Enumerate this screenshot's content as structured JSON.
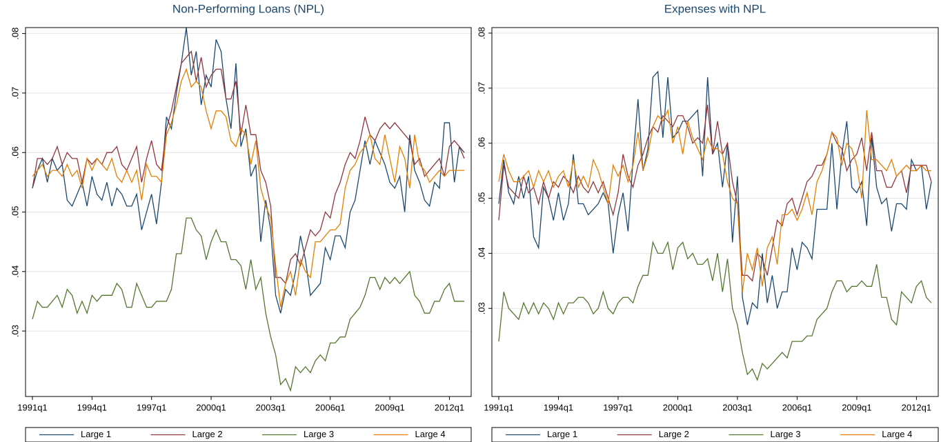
{
  "chart_data": [
    {
      "type": "line",
      "title": "Non-Performing Loans (NPL)",
      "categories": [
        "1991q1",
        null,
        null,
        null,
        null,
        null,
        null,
        null,
        null,
        null,
        null,
        null,
        "1994q1",
        null,
        null,
        null,
        null,
        null,
        null,
        null,
        null,
        null,
        null,
        null,
        "1997q1",
        null,
        null,
        null,
        null,
        null,
        null,
        null,
        null,
        null,
        null,
        null,
        "2000q1",
        null,
        null,
        null,
        null,
        null,
        null,
        null,
        null,
        null,
        null,
        null,
        "2003q1",
        null,
        null,
        null,
        null,
        null,
        null,
        null,
        null,
        null,
        null,
        null,
        "2006q1",
        null,
        null,
        null,
        null,
        null,
        null,
        null,
        null,
        null,
        null,
        null,
        "2009q1",
        null,
        null,
        null,
        null,
        null,
        null,
        null,
        null,
        null,
        null,
        null,
        "2012q1",
        null,
        null,
        null
      ],
      "ylim": [
        0.019,
        0.081
      ],
      "yticks": [
        {
          "value": 0.03,
          "label": ".03"
        },
        {
          "value": 0.04,
          "label": ".04"
        },
        {
          "value": 0.05,
          "label": ".05"
        },
        {
          "value": 0.06,
          "label": ".06"
        },
        {
          "value": 0.07,
          "label": ".07"
        },
        {
          "value": 0.08,
          "label": ".08"
        }
      ],
      "grid": true,
      "legend": "bottom",
      "series": [
        {
          "name": "Large 1",
          "color": "#1a476f",
          "values": [
            0.054,
            0.057,
            0.059,
            0.055,
            0.059,
            0.057,
            0.058,
            0.052,
            0.051,
            0.053,
            0.055,
            0.051,
            0.056,
            0.053,
            0.052,
            0.055,
            0.051,
            0.054,
            0.053,
            0.051,
            0.051,
            0.053,
            0.047,
            0.05,
            0.053,
            0.048,
            0.055,
            0.066,
            0.064,
            0.07,
            0.075,
            0.081,
            0.073,
            0.077,
            0.068,
            0.073,
            0.071,
            0.079,
            0.077,
            0.069,
            0.064,
            0.075,
            0.061,
            0.064,
            0.056,
            0.058,
            0.045,
            0.052,
            0.047,
            0.036,
            0.033,
            0.037,
            0.036,
            0.04,
            0.046,
            0.042,
            0.036,
            0.037,
            0.038,
            0.044,
            0.042,
            0.046,
            0.046,
            0.044,
            0.05,
            0.052,
            0.057,
            0.062,
            0.058,
            0.062,
            0.06,
            0.058,
            0.055,
            0.054,
            0.056,
            0.05,
            0.063,
            0.057,
            0.055,
            0.052,
            0.051,
            0.055,
            0.054,
            0.065,
            0.065,
            0.055,
            0.061,
            0.06
          ]
        },
        {
          "name": "Large 2",
          "color": "#90353b",
          "values": [
            0.054,
            0.059,
            0.059,
            0.058,
            0.059,
            0.061,
            0.058,
            0.06,
            0.059,
            0.059,
            0.055,
            0.059,
            0.058,
            0.059,
            0.058,
            0.06,
            0.06,
            0.061,
            0.058,
            0.057,
            0.059,
            0.061,
            0.055,
            0.059,
            0.062,
            0.058,
            0.057,
            0.064,
            0.067,
            0.071,
            0.075,
            0.076,
            0.077,
            0.072,
            0.076,
            0.071,
            0.073,
            0.074,
            0.074,
            0.069,
            0.069,
            0.072,
            0.063,
            0.068,
            0.063,
            0.063,
            0.057,
            0.055,
            0.051,
            0.039,
            0.039,
            0.038,
            0.042,
            0.043,
            0.041,
            0.044,
            0.047,
            0.046,
            0.047,
            0.05,
            0.049,
            0.053,
            0.055,
            0.058,
            0.06,
            0.059,
            0.062,
            0.066,
            0.063,
            0.062,
            0.064,
            0.065,
            0.064,
            0.065,
            0.064,
            0.063,
            0.062,
            0.058,
            0.059,
            0.056,
            0.057,
            0.058,
            0.059,
            0.056,
            0.061,
            0.062,
            0.061,
            0.059
          ]
        },
        {
          "name": "Large 3",
          "color": "#55752f",
          "values": [
            0.032,
            0.035,
            0.034,
            0.034,
            0.035,
            0.036,
            0.034,
            0.037,
            0.036,
            0.033,
            0.035,
            0.033,
            0.036,
            0.035,
            0.036,
            0.036,
            0.036,
            0.038,
            0.037,
            0.034,
            0.034,
            0.038,
            0.036,
            0.034,
            0.034,
            0.035,
            0.035,
            0.035,
            0.037,
            0.043,
            0.043,
            0.049,
            0.049,
            0.047,
            0.046,
            0.042,
            0.045,
            0.047,
            0.045,
            0.045,
            0.042,
            0.042,
            0.041,
            0.037,
            0.042,
            0.037,
            0.039,
            0.033,
            0.029,
            0.026,
            0.021,
            0.022,
            0.02,
            0.024,
            0.023,
            0.024,
            0.023,
            0.025,
            0.026,
            0.025,
            0.028,
            0.028,
            0.029,
            0.029,
            0.032,
            0.033,
            0.034,
            0.036,
            0.039,
            0.039,
            0.037,
            0.039,
            0.038,
            0.039,
            0.038,
            0.039,
            0.04,
            0.036,
            0.035,
            0.033,
            0.033,
            0.035,
            0.035,
            0.037,
            0.038,
            0.035,
            0.035,
            0.035
          ]
        },
        {
          "name": "Large 4",
          "color": "#e37e00",
          "values": [
            0.056,
            0.057,
            0.058,
            0.056,
            0.057,
            0.057,
            0.056,
            0.058,
            0.056,
            0.057,
            0.054,
            0.059,
            0.057,
            0.059,
            0.058,
            0.057,
            0.059,
            0.056,
            0.055,
            0.057,
            0.055,
            0.057,
            0.052,
            0.058,
            0.056,
            0.056,
            0.055,
            0.063,
            0.065,
            0.068,
            0.072,
            0.074,
            0.071,
            0.072,
            0.071,
            0.067,
            0.064,
            0.067,
            0.067,
            0.066,
            0.062,
            0.061,
            0.064,
            0.063,
            0.058,
            0.062,
            0.054,
            0.051,
            0.049,
            0.041,
            0.034,
            0.038,
            0.04,
            0.036,
            0.042,
            0.04,
            0.039,
            0.045,
            0.045,
            0.046,
            0.047,
            0.047,
            0.048,
            0.054,
            0.057,
            0.058,
            0.06,
            0.061,
            0.063,
            0.059,
            0.058,
            0.063,
            0.059,
            0.055,
            0.061,
            0.059,
            0.054,
            0.063,
            0.058,
            0.057,
            0.055,
            0.056,
            0.057,
            0.056,
            0.057,
            0.057,
            0.057,
            0.057
          ]
        }
      ]
    },
    {
      "type": "line",
      "title": "Expenses with NPL",
      "categories": [
        "1991q1",
        null,
        null,
        null,
        null,
        null,
        null,
        null,
        null,
        null,
        null,
        null,
        "1994q1",
        null,
        null,
        null,
        null,
        null,
        null,
        null,
        null,
        null,
        null,
        null,
        "1997q1",
        null,
        null,
        null,
        null,
        null,
        null,
        null,
        null,
        null,
        null,
        null,
        "2000q1",
        null,
        null,
        null,
        null,
        null,
        null,
        null,
        null,
        null,
        null,
        null,
        "2003q1",
        null,
        null,
        null,
        null,
        null,
        null,
        null,
        null,
        null,
        null,
        null,
        "2006q1",
        null,
        null,
        null,
        null,
        null,
        null,
        null,
        null,
        null,
        null,
        null,
        "2009q1",
        null,
        null,
        null,
        null,
        null,
        null,
        null,
        null,
        null,
        null,
        null,
        "2012q1",
        null,
        null,
        null
      ],
      "ylim": [
        0.014,
        0.081
      ],
      "yticks": [
        {
          "value": 0.03,
          "label": ".03"
        },
        {
          "value": 0.04,
          "label": ".04"
        },
        {
          "value": 0.05,
          "label": ".05"
        },
        {
          "value": 0.06,
          "label": ".06"
        },
        {
          "value": 0.07,
          "label": ".07"
        },
        {
          "value": 0.08,
          "label": ".08"
        }
      ],
      "grid": true,
      "legend": "bottom",
      "series": [
        {
          "name": "Large 1",
          "color": "#1a476f",
          "values": [
            0.049,
            0.057,
            0.051,
            0.049,
            0.054,
            0.05,
            0.054,
            0.043,
            0.041,
            0.052,
            0.05,
            0.046,
            0.051,
            0.046,
            0.049,
            0.058,
            0.049,
            0.049,
            0.047,
            0.048,
            0.049,
            0.051,
            0.049,
            0.04,
            0.047,
            0.051,
            0.044,
            0.057,
            0.068,
            0.055,
            0.059,
            0.072,
            0.073,
            0.061,
            0.072,
            0.061,
            0.062,
            0.064,
            0.064,
            0.065,
            0.066,
            0.054,
            0.072,
            0.058,
            0.06,
            0.052,
            0.06,
            0.042,
            0.054,
            0.032,
            0.027,
            0.031,
            0.03,
            0.04,
            0.031,
            0.036,
            0.03,
            0.033,
            0.033,
            0.041,
            0.037,
            0.042,
            0.041,
            0.039,
            0.048,
            0.048,
            0.048,
            0.06,
            0.048,
            0.058,
            0.064,
            0.052,
            0.051,
            0.053,
            0.045,
            0.061,
            0.052,
            0.049,
            0.05,
            0.044,
            0.049,
            0.049,
            0.048,
            0.057,
            0.055,
            0.056,
            0.048,
            0.053
          ]
        },
        {
          "name": "Large 2",
          "color": "#90353b",
          "values": [
            0.046,
            0.056,
            0.052,
            0.051,
            0.05,
            0.054,
            0.051,
            0.052,
            0.049,
            0.053,
            0.05,
            0.053,
            0.052,
            0.054,
            0.053,
            0.051,
            0.054,
            0.052,
            0.051,
            0.053,
            0.051,
            0.053,
            0.05,
            0.047,
            0.051,
            0.058,
            0.054,
            0.052,
            0.056,
            0.058,
            0.061,
            0.063,
            0.062,
            0.065,
            0.064,
            0.063,
            0.065,
            0.065,
            0.063,
            0.06,
            0.061,
            0.06,
            0.067,
            0.058,
            0.064,
            0.058,
            0.06,
            0.053,
            0.049,
            0.036,
            0.036,
            0.035,
            0.04,
            0.039,
            0.036,
            0.041,
            0.046,
            0.045,
            0.049,
            0.05,
            0.047,
            0.05,
            0.053,
            0.054,
            0.056,
            0.056,
            0.058,
            0.062,
            0.06,
            0.059,
            0.055,
            0.057,
            0.058,
            0.061,
            0.055,
            0.062,
            0.055,
            0.055,
            0.052,
            0.052,
            0.054,
            0.055,
            0.051,
            0.056,
            0.056,
            0.056,
            0.056,
            0.053
          ]
        },
        {
          "name": "Large 3",
          "color": "#55752f",
          "values": [
            0.024,
            0.033,
            0.03,
            0.029,
            0.028,
            0.031,
            0.029,
            0.031,
            0.029,
            0.031,
            0.03,
            0.028,
            0.031,
            0.029,
            0.031,
            0.031,
            0.032,
            0.032,
            0.031,
            0.029,
            0.03,
            0.033,
            0.03,
            0.029,
            0.031,
            0.032,
            0.032,
            0.031,
            0.034,
            0.036,
            0.036,
            0.042,
            0.04,
            0.04,
            0.042,
            0.037,
            0.041,
            0.042,
            0.039,
            0.04,
            0.038,
            0.038,
            0.039,
            0.035,
            0.04,
            0.033,
            0.039,
            0.03,
            0.027,
            0.022,
            0.018,
            0.019,
            0.017,
            0.02,
            0.019,
            0.02,
            0.021,
            0.022,
            0.021,
            0.024,
            0.024,
            0.024,
            0.025,
            0.025,
            0.028,
            0.029,
            0.03,
            0.033,
            0.035,
            0.035,
            0.033,
            0.034,
            0.034,
            0.035,
            0.034,
            0.034,
            0.038,
            0.032,
            0.032,
            0.028,
            0.027,
            0.033,
            0.032,
            0.031,
            0.034,
            0.035,
            0.032,
            0.031
          ]
        },
        {
          "name": "Large 4",
          "color": "#e37e00",
          "values": [
            0.053,
            0.058,
            0.055,
            0.053,
            0.053,
            0.054,
            0.055,
            0.052,
            0.055,
            0.053,
            0.055,
            0.052,
            0.054,
            0.055,
            0.052,
            0.057,
            0.052,
            0.054,
            0.052,
            0.057,
            0.055,
            0.052,
            0.049,
            0.056,
            0.054,
            0.056,
            0.053,
            0.056,
            0.062,
            0.055,
            0.058,
            0.063,
            0.065,
            0.064,
            0.066,
            0.06,
            0.063,
            0.058,
            0.064,
            0.061,
            0.059,
            0.057,
            0.061,
            0.059,
            0.059,
            0.058,
            0.053,
            0.05,
            0.049,
            0.033,
            0.04,
            0.037,
            0.041,
            0.034,
            0.041,
            0.043,
            0.038,
            0.047,
            0.047,
            0.048,
            0.046,
            0.048,
            0.051,
            0.047,
            0.053,
            0.055,
            0.058,
            0.062,
            0.061,
            0.056,
            0.06,
            0.059,
            0.056,
            0.05,
            0.066,
            0.057,
            0.057,
            0.056,
            0.055,
            0.057,
            0.054,
            0.055,
            0.056,
            0.055,
            0.055,
            0.056,
            0.055,
            0.055
          ]
        }
      ]
    }
  ]
}
